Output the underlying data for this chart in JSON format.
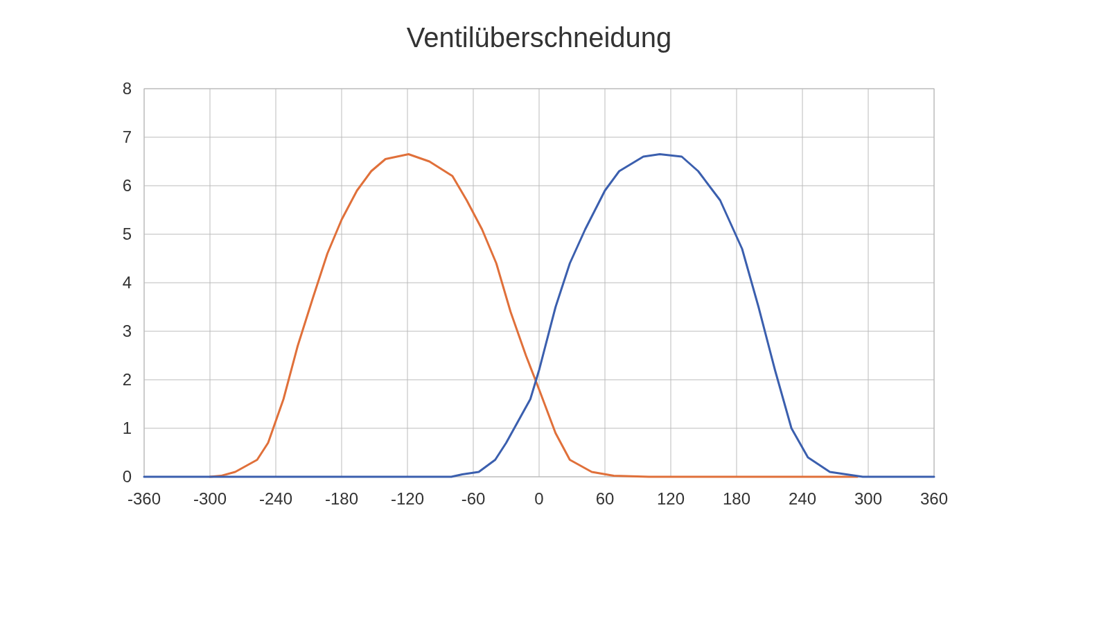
{
  "chart_data": {
    "type": "line",
    "title": "Ventilüberschneidung",
    "xlim": [
      -360,
      360
    ],
    "xticks": [
      -360,
      -300,
      -240,
      -180,
      -120,
      -60,
      0,
      60,
      120,
      180,
      240,
      300,
      360
    ],
    "ylim": [
      0,
      8
    ],
    "yticks": [
      0,
      1,
      2,
      3,
      4,
      5,
      6,
      7,
      8
    ],
    "grid": true,
    "marker": "none",
    "line_style": "solid",
    "series": [
      {
        "color": "#e0703a",
        "x": [
          -300,
          -290,
          -277,
          -257,
          -247,
          -233,
          -220,
          -206,
          -193,
          -180,
          -166,
          -153,
          -140,
          -119,
          -100,
          -79,
          -66,
          -52,
          -39,
          -26,
          -12,
          0,
          15,
          28,
          48,
          68,
          100,
          200,
          290
        ],
        "values": [
          0,
          0.02,
          0.1,
          0.35,
          0.7,
          1.6,
          2.7,
          3.7,
          4.6,
          5.3,
          5.9,
          6.3,
          6.55,
          6.65,
          6.5,
          6.2,
          5.7,
          5.1,
          4.4,
          3.4,
          2.5,
          1.8,
          0.9,
          0.35,
          0.1,
          0.02,
          0,
          0,
          0
        ]
      },
      {
        "color": "#3b5fae",
        "x": [
          -360,
          -200,
          -80,
          -70,
          -55,
          -40,
          -30,
          -8,
          0,
          15,
          28,
          42,
          60,
          73,
          95,
          110,
          130,
          145,
          165,
          185,
          200,
          215,
          230,
          245,
          265,
          280,
          295,
          360
        ],
        "values": [
          0,
          0,
          0,
          0.05,
          0.1,
          0.35,
          0.7,
          1.6,
          2.2,
          3.5,
          4.4,
          5.1,
          5.9,
          6.3,
          6.6,
          6.65,
          6.6,
          6.3,
          5.7,
          4.7,
          3.5,
          2.2,
          1.0,
          0.4,
          0.1,
          0.05,
          0,
          0
        ]
      }
    ]
  }
}
